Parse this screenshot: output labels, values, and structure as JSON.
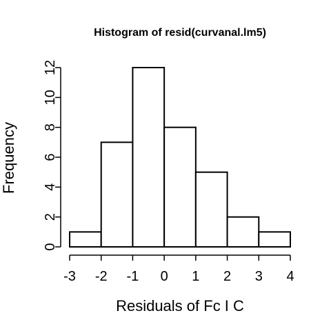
{
  "chart_data": {
    "type": "bar",
    "title": "Histogram of resid(curvanal.lm5)",
    "xlabel": "Residuals of Fc I C",
    "ylabel": "Frequency",
    "bins": [
      {
        "from": -3,
        "to": -2,
        "count": 1
      },
      {
        "from": -2,
        "to": -1,
        "count": 7
      },
      {
        "from": -1,
        "to": 0,
        "count": 12
      },
      {
        "from": 0,
        "to": 1,
        "count": 8
      },
      {
        "from": 1,
        "to": 2,
        "count": 5
      },
      {
        "from": 2,
        "to": 3,
        "count": 2
      },
      {
        "from": 3,
        "to": 4,
        "count": 1
      }
    ],
    "xlim": [
      -3,
      4
    ],
    "ylim": [
      0,
      12
    ],
    "x_ticks": [
      "-3",
      "-2",
      "-1",
      "0",
      "1",
      "2",
      "3",
      "4"
    ],
    "y_ticks": [
      "0",
      "2",
      "4",
      "6",
      "8",
      "10",
      "12"
    ],
    "grid": false,
    "bar_fill": "#ffffff",
    "bar_stroke": "#000000"
  }
}
